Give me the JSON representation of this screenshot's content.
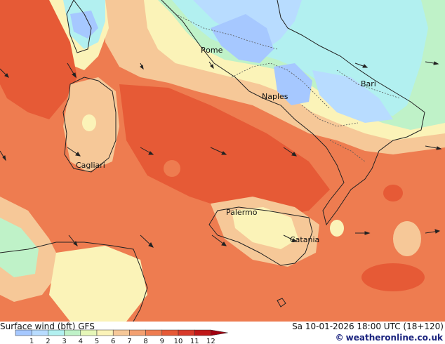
{
  "map": {
    "cities": [
      {
        "id": "rome",
        "name": "Rome"
      },
      {
        "id": "bari",
        "name": "Bari"
      },
      {
        "id": "naples",
        "name": "Naples"
      },
      {
        "id": "cagliari",
        "name": "Cagliari"
      },
      {
        "id": "palermo",
        "name": "Palermo"
      },
      {
        "id": "catania",
        "name": "Catania"
      }
    ]
  },
  "footer": {
    "title": "Surface wind (bft)  GFS",
    "datetime": "Sa 10-01-2026 18:00 UTC (18+120)",
    "copyright_symbol": "©",
    "credit": "weatheronline.co.uk"
  },
  "legend": {
    "ticks": [
      "1",
      "2",
      "3",
      "4",
      "5",
      "6",
      "7",
      "8",
      "9",
      "10",
      "11",
      "12"
    ],
    "colors": [
      "#a6c8ff",
      "#b8dcff",
      "#b2f0f0",
      "#bff2c8",
      "#e6f7b8",
      "#fbf3b8",
      "#f6c898",
      "#f3a070",
      "#ee7c50",
      "#e65a36",
      "#d83a2a",
      "#c01818",
      "#a00010"
    ]
  }
}
